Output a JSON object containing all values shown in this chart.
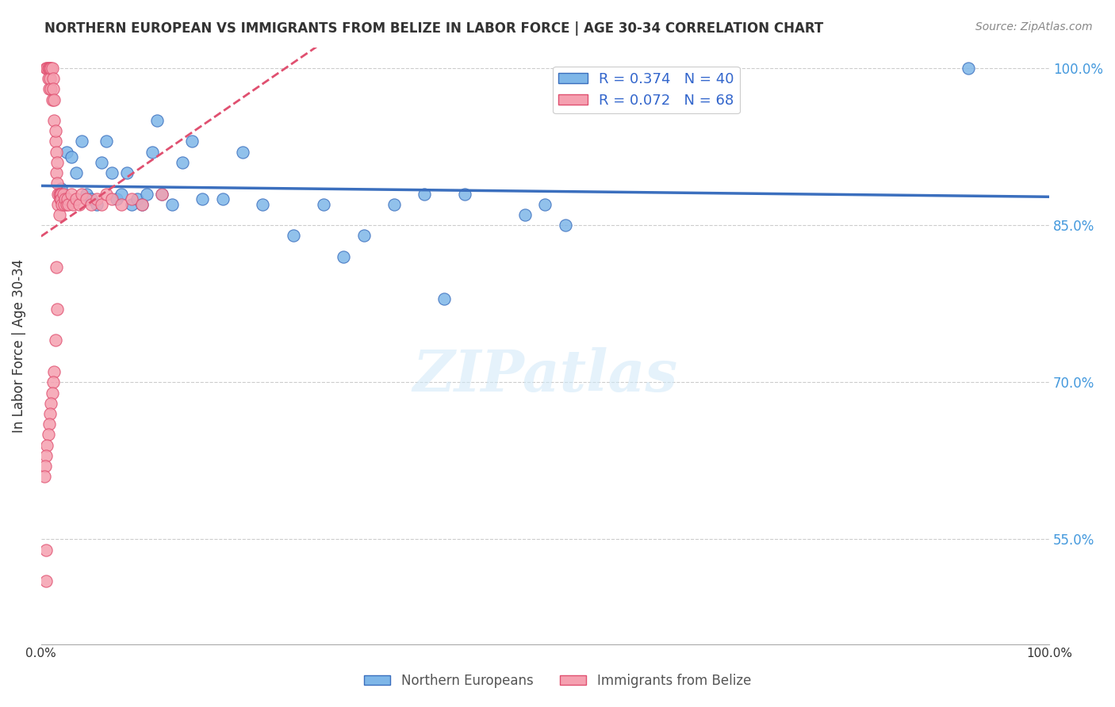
{
  "title": "NORTHERN EUROPEAN VS IMMIGRANTS FROM BELIZE IN LABOR FORCE | AGE 30-34 CORRELATION CHART",
  "source": "Source: ZipAtlas.com",
  "xlabel": "",
  "ylabel": "In Labor Force | Age 30-34",
  "xlim": [
    0,
    1.0
  ],
  "ylim": [
    0.45,
    1.02
  ],
  "yticks": [
    0.55,
    0.7,
    0.85,
    1.0
  ],
  "ytick_labels": [
    "55.0%",
    "70.0%",
    "85.0%",
    "100.0%"
  ],
  "xticks": [
    0.0,
    0.1,
    0.2,
    0.3,
    0.4,
    0.5,
    0.6,
    0.7,
    0.8,
    0.9,
    1.0
  ],
  "xtick_labels": [
    "0.0%",
    "",
    "",
    "",
    "",
    "",
    "",
    "",
    "",
    "",
    "100.0%"
  ],
  "blue_R": 0.374,
  "blue_N": 40,
  "pink_R": 0.072,
  "pink_N": 68,
  "blue_color": "#7EB6E8",
  "pink_color": "#F5A0B0",
  "blue_line_color": "#3B6FBE",
  "pink_line_color": "#E05070",
  "background_color": "#FFFFFF",
  "watermark": "ZIPatlas",
  "legend_label_blue": "Northern Europeans",
  "legend_label_pink": "Immigrants from Belize",
  "blue_scatter_x": [
    0.02,
    0.025,
    0.03,
    0.035,
    0.04,
    0.045,
    0.05,
    0.055,
    0.06,
    0.065,
    0.07,
    0.075,
    0.08,
    0.085,
    0.09,
    0.095,
    0.1,
    0.105,
    0.11,
    0.115,
    0.12,
    0.13,
    0.14,
    0.15,
    0.16,
    0.18,
    0.2,
    0.22,
    0.25,
    0.28,
    0.3,
    0.32,
    0.35,
    0.38,
    0.4,
    0.42,
    0.48,
    0.5,
    0.52,
    0.92
  ],
  "blue_scatter_y": [
    0.885,
    0.92,
    0.915,
    0.9,
    0.93,
    0.88,
    0.875,
    0.87,
    0.91,
    0.93,
    0.9,
    0.875,
    0.88,
    0.9,
    0.87,
    0.875,
    0.87,
    0.88,
    0.92,
    0.95,
    0.88,
    0.87,
    0.91,
    0.93,
    0.875,
    0.875,
    0.92,
    0.87,
    0.84,
    0.87,
    0.82,
    0.84,
    0.87,
    0.88,
    0.78,
    0.88,
    0.86,
    0.87,
    0.85,
    1.0
  ],
  "pink_scatter_x": [
    0.005,
    0.006,
    0.007,
    0.007,
    0.008,
    0.008,
    0.009,
    0.009,
    0.01,
    0.01,
    0.011,
    0.011,
    0.012,
    0.012,
    0.013,
    0.013,
    0.014,
    0.014,
    0.015,
    0.015,
    0.016,
    0.016,
    0.017,
    0.017,
    0.018,
    0.018,
    0.019,
    0.019,
    0.02,
    0.02,
    0.021,
    0.022,
    0.023,
    0.024,
    0.025,
    0.026,
    0.027,
    0.03,
    0.032,
    0.035,
    0.038,
    0.04,
    0.045,
    0.05,
    0.055,
    0.06,
    0.065,
    0.07,
    0.08,
    0.09,
    0.1,
    0.12,
    0.015,
    0.016,
    0.014,
    0.013,
    0.012,
    0.011,
    0.01,
    0.009,
    0.008,
    0.007,
    0.006,
    0.005,
    0.004,
    0.003,
    0.005,
    0.005
  ],
  "pink_scatter_y": [
    1.0,
    1.0,
    1.0,
    0.99,
    1.0,
    0.98,
    1.0,
    0.99,
    1.0,
    0.98,
    1.0,
    0.97,
    0.99,
    0.98,
    0.97,
    0.95,
    0.93,
    0.94,
    0.92,
    0.9,
    0.91,
    0.89,
    0.88,
    0.87,
    0.88,
    0.86,
    0.875,
    0.88,
    0.88,
    0.875,
    0.87,
    0.88,
    0.87,
    0.875,
    0.87,
    0.875,
    0.87,
    0.88,
    0.87,
    0.875,
    0.87,
    0.88,
    0.875,
    0.87,
    0.875,
    0.87,
    0.88,
    0.875,
    0.87,
    0.875,
    0.87,
    0.88,
    0.81,
    0.77,
    0.74,
    0.71,
    0.7,
    0.69,
    0.68,
    0.67,
    0.66,
    0.65,
    0.64,
    0.63,
    0.62,
    0.61,
    0.54,
    0.51
  ]
}
